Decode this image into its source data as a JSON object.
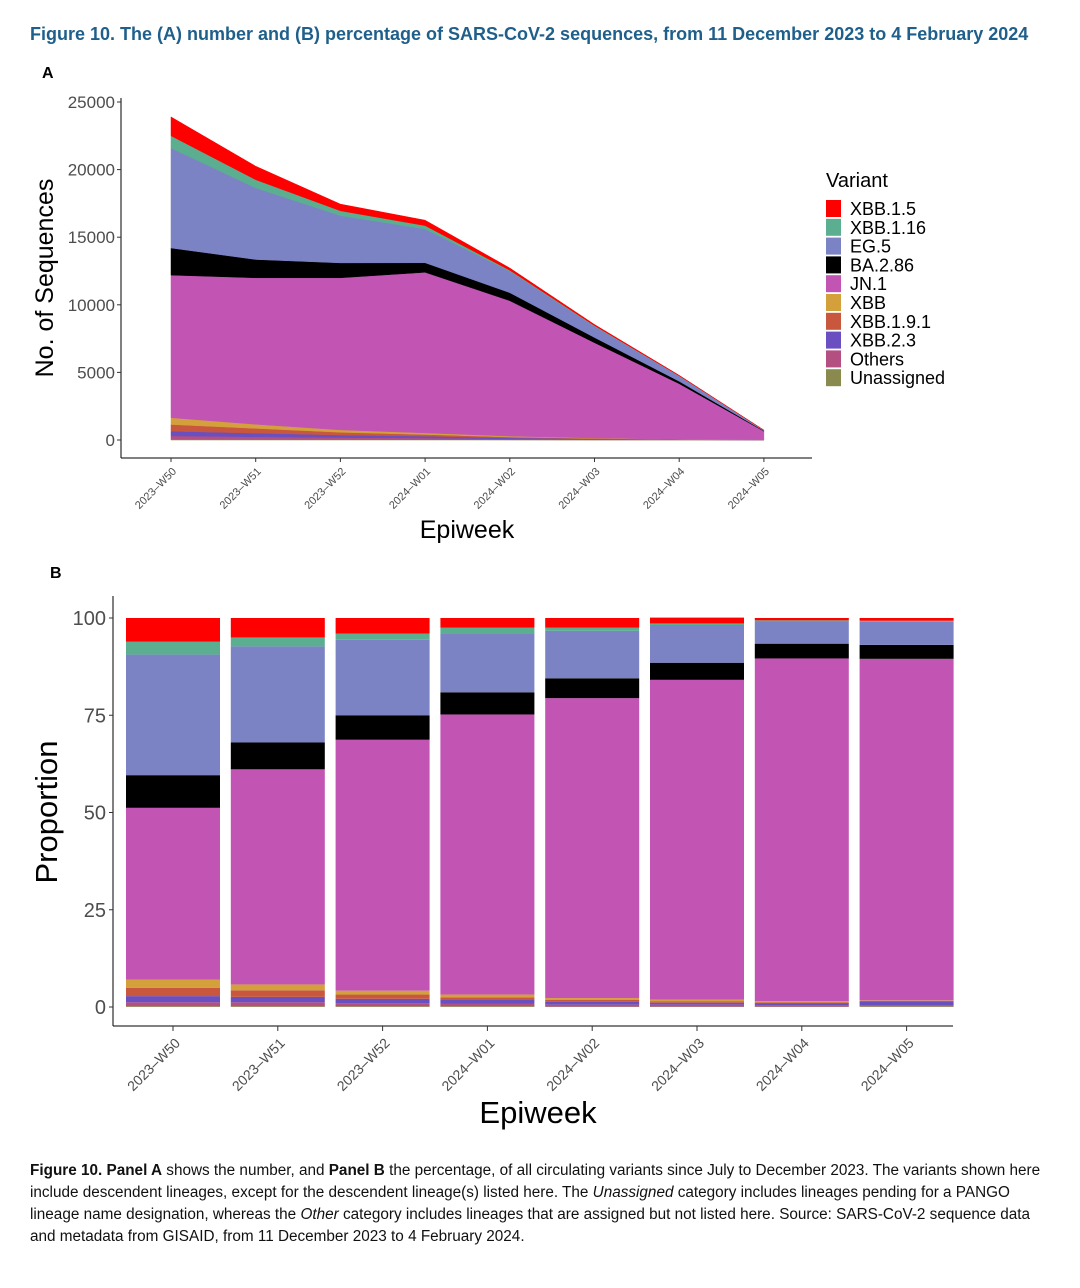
{
  "figure_title": "Figure 10. The (A) number and (B) percentage of SARS-CoV-2 sequences, from 11 December 2023 to 4 February 2024",
  "caption": {
    "part1": "Figure 10. Panel A",
    "part2": " shows the number, and ",
    "part3": "Panel B",
    "part4": " the percentage, of all circulating variants since July to December 2023. The variants shown here include descendent lineages, except for the descendent lineage(s) listed here. The ",
    "part5": "Unassigned",
    "part6": " category includes lineages pending for a PANGO lineage name designation, whereas the ",
    "part7": "Other",
    "part8": " category includes lineages that are assigned but not listed here. Source: SARS-CoV-2 sequence data and metadata from GISAID, from 11 December 2023 to 4 February 2024."
  },
  "legend": {
    "title": "Variant",
    "items": [
      {
        "name": "XBB.1.5",
        "color": "#FF0000"
      },
      {
        "name": "XBB.1.16",
        "color": "#5BAE90"
      },
      {
        "name": "EG.5",
        "color": "#7B83C4"
      },
      {
        "name": "BA.2.86",
        "color": "#000000"
      },
      {
        "name": "JN.1",
        "color": "#C255B4"
      },
      {
        "name": "XBB",
        "color": "#D3A03B"
      },
      {
        "name": "XBB.1.9.1",
        "color": "#C8573D"
      },
      {
        "name": "XBB.2.3",
        "color": "#6A4FC0"
      },
      {
        "name": "Others",
        "color": "#B44F82"
      },
      {
        "name": "Unassigned",
        "color": "#8A8A4E"
      }
    ]
  },
  "chart_data": [
    {
      "panel": "A",
      "type": "area",
      "x": [
        "2023–W50",
        "2023–W51",
        "2023–W52",
        "2024–W01",
        "2024–W02",
        "2024–W03",
        "2024–W04",
        "2024–W05"
      ],
      "xlabel": "Epiweek",
      "ylabel": "No. of Sequences",
      "ylim": [
        0,
        25000
      ],
      "yticks": [
        0,
        5000,
        10000,
        15000,
        20000,
        25000
      ],
      "stack_order": [
        "Unassigned",
        "Others",
        "XBB.2.3",
        "XBB.1.9.1",
        "XBB",
        "JN.1",
        "BA.2.86",
        "EG.5",
        "XBB.1.16",
        "XBB.1.5"
      ],
      "series": [
        {
          "name": "Unassigned",
          "values": [
            50,
            40,
            30,
            25,
            15,
            10,
            5,
            2
          ]
        },
        {
          "name": "Others",
          "values": [
            250,
            200,
            150,
            120,
            70,
            40,
            15,
            5
          ]
        },
        {
          "name": "XBB.2.3",
          "values": [
            350,
            270,
            190,
            140,
            80,
            40,
            15,
            8
          ]
        },
        {
          "name": "XBB.1.9.1",
          "values": [
            500,
            350,
            200,
            120,
            60,
            30,
            10,
            3
          ]
        },
        {
          "name": "XBB",
          "values": [
            500,
            300,
            180,
            120,
            60,
            30,
            10,
            3
          ]
        },
        {
          "name": "JN.1",
          "values": [
            10550,
            10840,
            11250,
            11880,
            10020,
            7050,
            4110,
            630
          ]
        },
        {
          "name": "BA.2.86",
          "values": [
            2000,
            1350,
            1100,
            700,
            590,
            380,
            180,
            30
          ]
        },
        {
          "name": "EG.5",
          "values": [
            7400,
            5300,
            3500,
            2500,
            1590,
            840,
            390,
            40
          ]
        },
        {
          "name": "XBB.1.16",
          "values": [
            900,
            600,
            350,
            250,
            70,
            40,
            15,
            3
          ]
        },
        {
          "name": "XBB.1.5",
          "values": [
            1400,
            1000,
            500,
            400,
            170,
            85,
            35,
            6
          ]
        }
      ]
    },
    {
      "panel": "B",
      "type": "bar",
      "stacked": true,
      "categories": [
        "2023–W50",
        "2023–W51",
        "2023–W52",
        "2024–W01",
        "2024–W02",
        "2024–W03",
        "2024–W04",
        "2024–W05"
      ],
      "xlabel": "Epiweek",
      "ylabel": "Proportion",
      "ylim": [
        0,
        100
      ],
      "yticks": [
        0,
        25,
        50,
        75,
        100
      ],
      "stack_order": [
        "Unassigned",
        "Others",
        "XBB.2.3",
        "XBB.1.9.1",
        "XBB",
        "JN.1",
        "BA.2.86",
        "EG.5",
        "XBB.1.16",
        "XBB.1.5"
      ],
      "series": [
        {
          "name": "Unassigned",
          "values": [
            0.2,
            0.2,
            0.2,
            0.2,
            0.1,
            0.1,
            0.1,
            0.2
          ]
        },
        {
          "name": "Others",
          "values": [
            1.0,
            1.0,
            0.8,
            0.7,
            0.5,
            0.5,
            0.4,
            0.3
          ]
        },
        {
          "name": "XBB.2.3",
          "values": [
            1.6,
            1.4,
            1.1,
            0.9,
            0.7,
            0.5,
            0.4,
            1.0
          ]
        },
        {
          "name": "XBB.1.9.1",
          "values": [
            2.1,
            1.7,
            1.1,
            0.7,
            0.5,
            0.4,
            0.3,
            0.1
          ]
        },
        {
          "name": "XBB",
          "values": [
            2.1,
            1.5,
            1.0,
            0.7,
            0.5,
            0.4,
            0.3,
            0.1
          ]
        },
        {
          "name": "JN.1",
          "values": [
            44.2,
            55.3,
            64.5,
            72.0,
            77.1,
            82.2,
            88.1,
            87.8
          ]
        },
        {
          "name": "BA.2.86",
          "values": [
            8.4,
            6.9,
            6.3,
            5.7,
            5.1,
            4.4,
            3.8,
            3.6
          ]
        },
        {
          "name": "EG.5",
          "values": [
            31.0,
            24.7,
            19.4,
            15.1,
            12.2,
            9.7,
            5.7,
            5.9
          ]
        },
        {
          "name": "XBB.1.16",
          "values": [
            3.3,
            2.3,
            1.6,
            1.5,
            0.8,
            0.4,
            0.3,
            0.3
          ]
        },
        {
          "name": "XBB.1.5",
          "values": [
            6.1,
            5.0,
            4.0,
            2.5,
            2.5,
            1.5,
            0.6,
            0.7
          ]
        }
      ]
    }
  ],
  "panel_labels": {
    "a": "A",
    "b": "B"
  }
}
